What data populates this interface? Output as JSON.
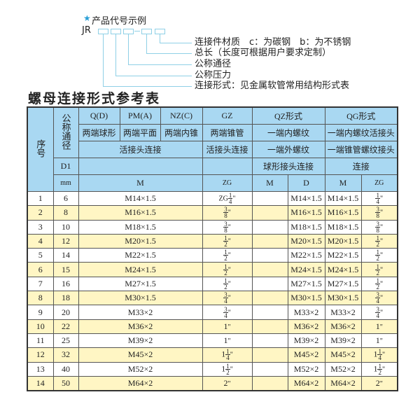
{
  "code_example": {
    "star_icon": "star-icon",
    "title": "产品代号示例",
    "prefix": "JR",
    "labels": [
      "连接件材质　c：为碳钢　b：为不锈钢",
      "总长（长度可根据用户要求定制）",
      "公称通径",
      "公称压力",
      "连接形式：见金属软管常用结构形式表"
    ]
  },
  "table_title": "螺母连接形式参考表",
  "header": {
    "seq": "序号",
    "nominal": "公称通径",
    "row1": [
      "Q(D)",
      "PM(A)",
      "NZ(C)",
      "GZ",
      "QZ形式",
      "QG形式"
    ],
    "row2": [
      "两端球形",
      "两端平面",
      "两端内锥",
      "两端锥管",
      "一端内螺纹",
      "一端内螺纹活接头"
    ],
    "row3": [
      "活接头连接",
      "活接头连接",
      "一端外螺纹",
      "一端锥管螺纹接头"
    ],
    "row4": [
      "D1",
      "",
      "",
      "球形接头连接",
      "连接"
    ],
    "row5": [
      "mm",
      "M",
      "ZG",
      "M",
      "D",
      "M",
      "ZG"
    ]
  },
  "rows": [
    {
      "no": "1",
      "d1": "6",
      "m": "M14×1.5",
      "zg": {
        "pre": "ZG",
        "whole": "",
        "num": "1",
        "den": "4"
      },
      "qz_m": "",
      "qz_d": "M14×1.5",
      "qg_m": "M14×1.5",
      "qg_zg": {
        "pre": "",
        "whole": "",
        "num": "1",
        "den": "4"
      }
    },
    {
      "no": "2",
      "d1": "8",
      "m": "M16×1.5",
      "zg": {
        "pre": "",
        "whole": "",
        "num": "3",
        "den": "8"
      },
      "qz_m": "",
      "qz_d": "M16×1.5",
      "qg_m": "M16×1.5",
      "qg_zg": {
        "pre": "",
        "whole": "",
        "num": "3",
        "den": "8"
      }
    },
    {
      "no": "3",
      "d1": "10",
      "m": "M18×1.5",
      "zg": {
        "pre": "",
        "whole": "",
        "num": "3",
        "den": "8"
      },
      "qz_m": "",
      "qz_d": "M18×1.5",
      "qg_m": "M18×1.5",
      "qg_zg": {
        "pre": "",
        "whole": "",
        "num": "3",
        "den": "8"
      }
    },
    {
      "no": "4",
      "d1": "12",
      "m": "M20×1.5",
      "zg": {
        "pre": "",
        "whole": "",
        "num": "1",
        "den": "2"
      },
      "qz_m": "",
      "qz_d": "M20×1.5",
      "qg_m": "M20×1.5",
      "qg_zg": {
        "pre": "",
        "whole": "",
        "num": "1",
        "den": "2"
      }
    },
    {
      "no": "5",
      "d1": "14",
      "m": "M22×1.5",
      "zg": {
        "pre": "",
        "whole": "",
        "num": "1",
        "den": "2"
      },
      "qz_m": "",
      "qz_d": "M22×1.5",
      "qg_m": "M22×1.5",
      "qg_zg": {
        "pre": "",
        "whole": "",
        "num": "1",
        "den": "2"
      }
    },
    {
      "no": "6",
      "d1": "15",
      "m": "M24×1.5",
      "zg": {
        "pre": "",
        "whole": "",
        "num": "1",
        "den": "2"
      },
      "qz_m": "",
      "qz_d": "M24×1.5",
      "qg_m": "M24×1.5",
      "qg_zg": {
        "pre": "",
        "whole": "",
        "num": "1",
        "den": "2"
      }
    },
    {
      "no": "7",
      "d1": "16",
      "m": "M27×1.5",
      "zg": {
        "pre": "",
        "whole": "",
        "num": "1",
        "den": "2"
      },
      "qz_m": "",
      "qz_d": "M27×1.5",
      "qg_m": "M27×1.5",
      "qg_zg": {
        "pre": "",
        "whole": "",
        "num": "1",
        "den": "2"
      }
    },
    {
      "no": "8",
      "d1": "18",
      "m": "M30×1.5",
      "zg": {
        "pre": "",
        "whole": "",
        "num": "3",
        "den": "4"
      },
      "qz_m": "",
      "qz_d": "M30×1.5",
      "qg_m": "M30×1.5",
      "qg_zg": {
        "pre": "",
        "whole": "",
        "num": "3",
        "den": "4"
      }
    },
    {
      "no": "9",
      "d1": "20",
      "m": "M33×2",
      "zg": {
        "pre": "",
        "whole": "",
        "num": "3",
        "den": "4"
      },
      "qz_m": "",
      "qz_d": "M33×2",
      "qg_m": "M33×2",
      "qg_zg": {
        "pre": "",
        "whole": "",
        "num": "3",
        "den": "4"
      }
    },
    {
      "no": "10",
      "d1": "22",
      "m": "M36×2",
      "zg": {
        "pre": "",
        "whole": "1",
        "num": "",
        "den": ""
      },
      "qz_m": "",
      "qz_d": "M36×2",
      "qg_m": "M36×2",
      "qg_zg": {
        "pre": "",
        "whole": "1",
        "num": "",
        "den": ""
      }
    },
    {
      "no": "11",
      "d1": "25",
      "m": "M39×2",
      "zg": {
        "pre": "",
        "whole": "1",
        "num": "",
        "den": ""
      },
      "qz_m": "",
      "qz_d": "M39×2",
      "qg_m": "M39×2",
      "qg_zg": {
        "pre": "",
        "whole": "1",
        "num": "",
        "den": ""
      }
    },
    {
      "no": "12",
      "d1": "32",
      "m": "M45×2",
      "zg": {
        "pre": "",
        "whole": "1",
        "num": "1",
        "den": "4"
      },
      "qz_m": "",
      "qz_d": "M45×2",
      "qg_m": "M45×2",
      "qg_zg": {
        "pre": "",
        "whole": "1",
        "num": "1",
        "den": "4"
      }
    },
    {
      "no": "13",
      "d1": "40",
      "m": "M52×2",
      "zg": {
        "pre": "",
        "whole": "1",
        "num": "1",
        "den": "2"
      },
      "qz_m": "",
      "qz_d": "M52×2",
      "qg_m": "M52×2",
      "qg_zg": {
        "pre": "",
        "whole": "1",
        "num": "1",
        "den": "2"
      }
    },
    {
      "no": "14",
      "d1": "50",
      "m": "M64×2",
      "zg": {
        "pre": "",
        "whole": "2",
        "num": "",
        "den": ""
      },
      "qz_m": "",
      "qz_d": "M64×2",
      "qg_m": "M64×2",
      "qg_zg": {
        "pre": "",
        "whole": "2",
        "num": "",
        "den": ""
      }
    }
  ],
  "inch_mark": "\""
}
